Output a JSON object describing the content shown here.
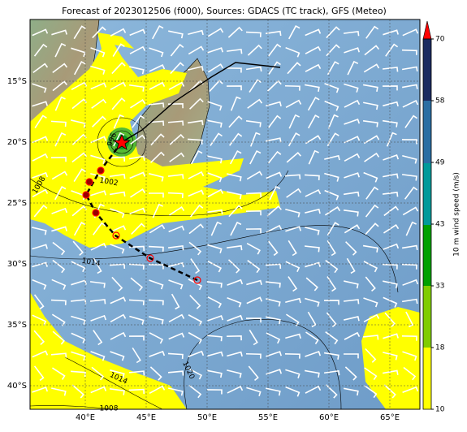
{
  "title": "Forecast of 2023012506 (f000), Sources: GDACS (TC track), GFS (Meteo)",
  "map": {
    "lon_ticks": [
      {
        "value": 40,
        "label": "40°E"
      },
      {
        "value": 45,
        "label": "45°E"
      },
      {
        "value": 50,
        "label": "50°E"
      },
      {
        "value": 55,
        "label": "55°E"
      },
      {
        "value": 60,
        "label": "60°E"
      },
      {
        "value": 65,
        "label": "65°E"
      }
    ],
    "lat_ticks": [
      {
        "value": -15,
        "label": "15°S"
      },
      {
        "value": -20,
        "label": "20°S"
      },
      {
        "value": -25,
        "label": "25°S"
      },
      {
        "value": -30,
        "label": "30°S"
      },
      {
        "value": -35,
        "label": "35°S"
      },
      {
        "value": -40,
        "label": "40°S"
      }
    ],
    "contour_labels": [
      "1008",
      "1002",
      "1014",
      "1014",
      "1020",
      "1008",
      "996"
    ]
  },
  "colorbar": {
    "label": "10 m wind speed (m/s)",
    "ticks": [
      10,
      18,
      33,
      43,
      49,
      58,
      70
    ]
  }
}
